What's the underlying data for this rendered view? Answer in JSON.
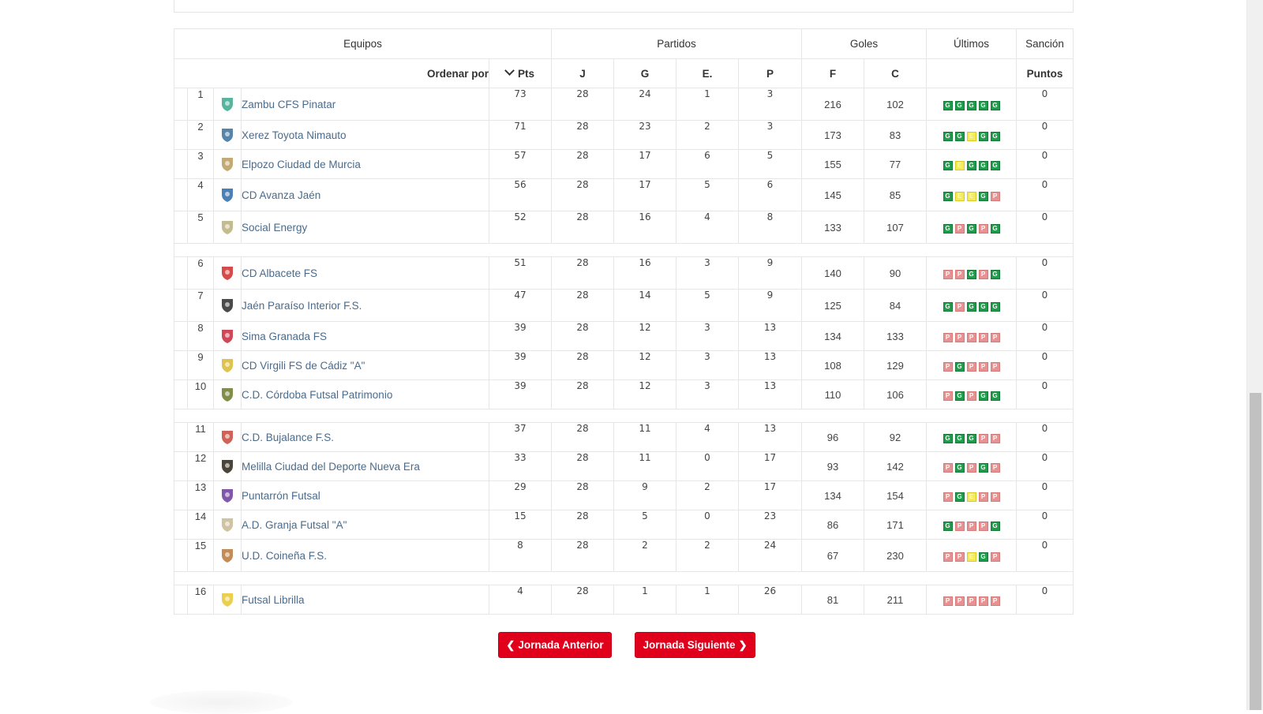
{
  "table": {
    "group_headers": {
      "equipos": "Equipos",
      "partidos": "Partidos",
      "goles": "Goles",
      "ultimos": "Últimos",
      "sancion": "Sanción"
    },
    "sub_headers": {
      "ordenar_por": "Ordenar por",
      "pts": "Pts",
      "j": "J",
      "g": "G",
      "e": "E.",
      "p": "P",
      "f": "F",
      "c": "C",
      "ultimos": "",
      "puntos": "Puntos"
    },
    "sort_icon": "chevron-down-icon",
    "rows": [
      {
        "pos": "1",
        "team": "Zambu CFS Pinatar",
        "logo_color": "#3aa88c",
        "pts": "73",
        "j": "28",
        "g": "24",
        "e": "1",
        "p": "3",
        "f": "216",
        "c": "102",
        "last": [
          "G",
          "G",
          "G",
          "G",
          "G"
        ],
        "sancion": "0"
      },
      {
        "pos": "2",
        "team": "Xerez Toyota Nimauto",
        "logo_color": "#3a6e9c",
        "pts": "71",
        "j": "28",
        "g": "23",
        "e": "2",
        "p": "3",
        "f": "173",
        "c": "83",
        "last": [
          "G",
          "G",
          "E",
          "G",
          "G"
        ],
        "sancion": "0"
      },
      {
        "pos": "3",
        "team": "Elpozo Ciudad de Murcia",
        "logo_color": "#b89a5a",
        "pts": "57",
        "j": "28",
        "g": "17",
        "e": "6",
        "p": "5",
        "f": "155",
        "c": "77",
        "last": [
          "G",
          "E",
          "G",
          "G",
          "G"
        ],
        "sancion": "0"
      },
      {
        "pos": "4",
        "team": "CD Avanza Jaén",
        "logo_color": "#2a6aa8",
        "pts": "56",
        "j": "28",
        "g": "17",
        "e": "5",
        "p": "6",
        "f": "145",
        "c": "85",
        "last": [
          "G",
          "E",
          "E",
          "G",
          "P"
        ],
        "sancion": "0"
      },
      {
        "pos": "5",
        "team": "Social Energy",
        "logo_color": "#b8b07a",
        "pts": "52",
        "j": "28",
        "g": "16",
        "e": "4",
        "p": "8",
        "f": "133",
        "c": "107",
        "last": [
          "G",
          "P",
          "G",
          "P",
          "G"
        ],
        "sancion": "0"
      },
      {
        "pos": "6",
        "team": "CD Albacete FS",
        "logo_color": "#d02a2a",
        "pts": "51",
        "j": "28",
        "g": "16",
        "e": "3",
        "p": "9",
        "f": "140",
        "c": "90",
        "last": [
          "P",
          "P",
          "G",
          "P",
          "G"
        ],
        "sancion": "0"
      },
      {
        "pos": "7",
        "team": "Jaén Paraíso Interior F.S.",
        "logo_color": "#2a2a2a",
        "pts": "47",
        "j": "28",
        "g": "14",
        "e": "5",
        "p": "9",
        "f": "125",
        "c": "84",
        "last": [
          "G",
          "P",
          "G",
          "G",
          "G"
        ],
        "sancion": "0"
      },
      {
        "pos": "8",
        "team": "Sima Granada FS",
        "logo_color": "#c8283a",
        "pts": "39",
        "j": "28",
        "g": "12",
        "e": "3",
        "p": "13",
        "f": "134",
        "c": "133",
        "last": [
          "P",
          "P",
          "P",
          "P",
          "P"
        ],
        "sancion": "0"
      },
      {
        "pos": "9",
        "team": "CD Virgili FS de Cádiz \"A\"",
        "logo_color": "#d8b830",
        "pts": "39",
        "j": "28",
        "g": "12",
        "e": "3",
        "p": "13",
        "f": "108",
        "c": "129",
        "last": [
          "P",
          "G",
          "P",
          "P",
          "P"
        ],
        "sancion": "0"
      },
      {
        "pos": "10",
        "team": "C.D. Córdoba Futsal Patrimonio",
        "logo_color": "#6a7a2a",
        "pts": "39",
        "j": "28",
        "g": "12",
        "e": "3",
        "p": "13",
        "f": "110",
        "c": "106",
        "last": [
          "P",
          "G",
          "P",
          "G",
          "G"
        ],
        "sancion": "0"
      },
      {
        "pos": "11",
        "team": "C.D. Bujalance F.S.",
        "logo_color": "#c8483a",
        "pts": "37",
        "j": "28",
        "g": "11",
        "e": "4",
        "p": "13",
        "f": "96",
        "c": "92",
        "last": [
          "G",
          "G",
          "G",
          "P",
          "P"
        ],
        "sancion": "0"
      },
      {
        "pos": "12",
        "team": "Melilla Ciudad del Deporte Nueva Era",
        "logo_color": "#2a2418",
        "pts": "33",
        "j": "28",
        "g": "11",
        "e": "0",
        "p": "17",
        "f": "93",
        "c": "142",
        "last": [
          "P",
          "G",
          "P",
          "G",
          "P"
        ],
        "sancion": "0"
      },
      {
        "pos": "13",
        "team": "Puntarrón Futsal",
        "logo_color": "#6a3a9a",
        "pts": "29",
        "j": "28",
        "g": "9",
        "e": "2",
        "p": "17",
        "f": "134",
        "c": "154",
        "last": [
          "P",
          "G",
          "E",
          "P",
          "P"
        ],
        "sancion": "0"
      },
      {
        "pos": "14",
        "team": "A.D. Granja Futsal \"A\"",
        "logo_color": "#c8b890",
        "pts": "15",
        "j": "28",
        "g": "5",
        "e": "0",
        "p": "23",
        "f": "86",
        "c": "171",
        "last": [
          "G",
          "P",
          "P",
          "P",
          "G"
        ],
        "sancion": "0"
      },
      {
        "pos": "15",
        "team": "U.D. Coineña F.S.",
        "logo_color": "#b8783a",
        "pts": "8",
        "j": "28",
        "g": "2",
        "e": "2",
        "p": "24",
        "f": "67",
        "c": "230",
        "last": [
          "P",
          "P",
          "E",
          "G",
          "P"
        ],
        "sancion": "0"
      },
      {
        "pos": "16",
        "team": "Futsal Librilla",
        "logo_color": "#e8c830",
        "pts": "4",
        "j": "28",
        "g": "1",
        "e": "1",
        "p": "26",
        "f": "81",
        "c": "211",
        "last": [
          "P",
          "P",
          "P",
          "P",
          "P"
        ],
        "sancion": "0"
      }
    ],
    "separators_after": [
      "5",
      "10",
      "15"
    ]
  },
  "navigation": {
    "prev_label": "Jornada Anterior",
    "next_label": "Jornada Siguiente",
    "prev_icon": "chevron-left-icon",
    "next_icon": "chevron-right-icon",
    "button_color": "#e0001b"
  },
  "colors": {
    "win": "#1f9c4a",
    "draw": "#f2ea5a",
    "loss": "#e69292",
    "team_link": "#4a6b8c"
  }
}
